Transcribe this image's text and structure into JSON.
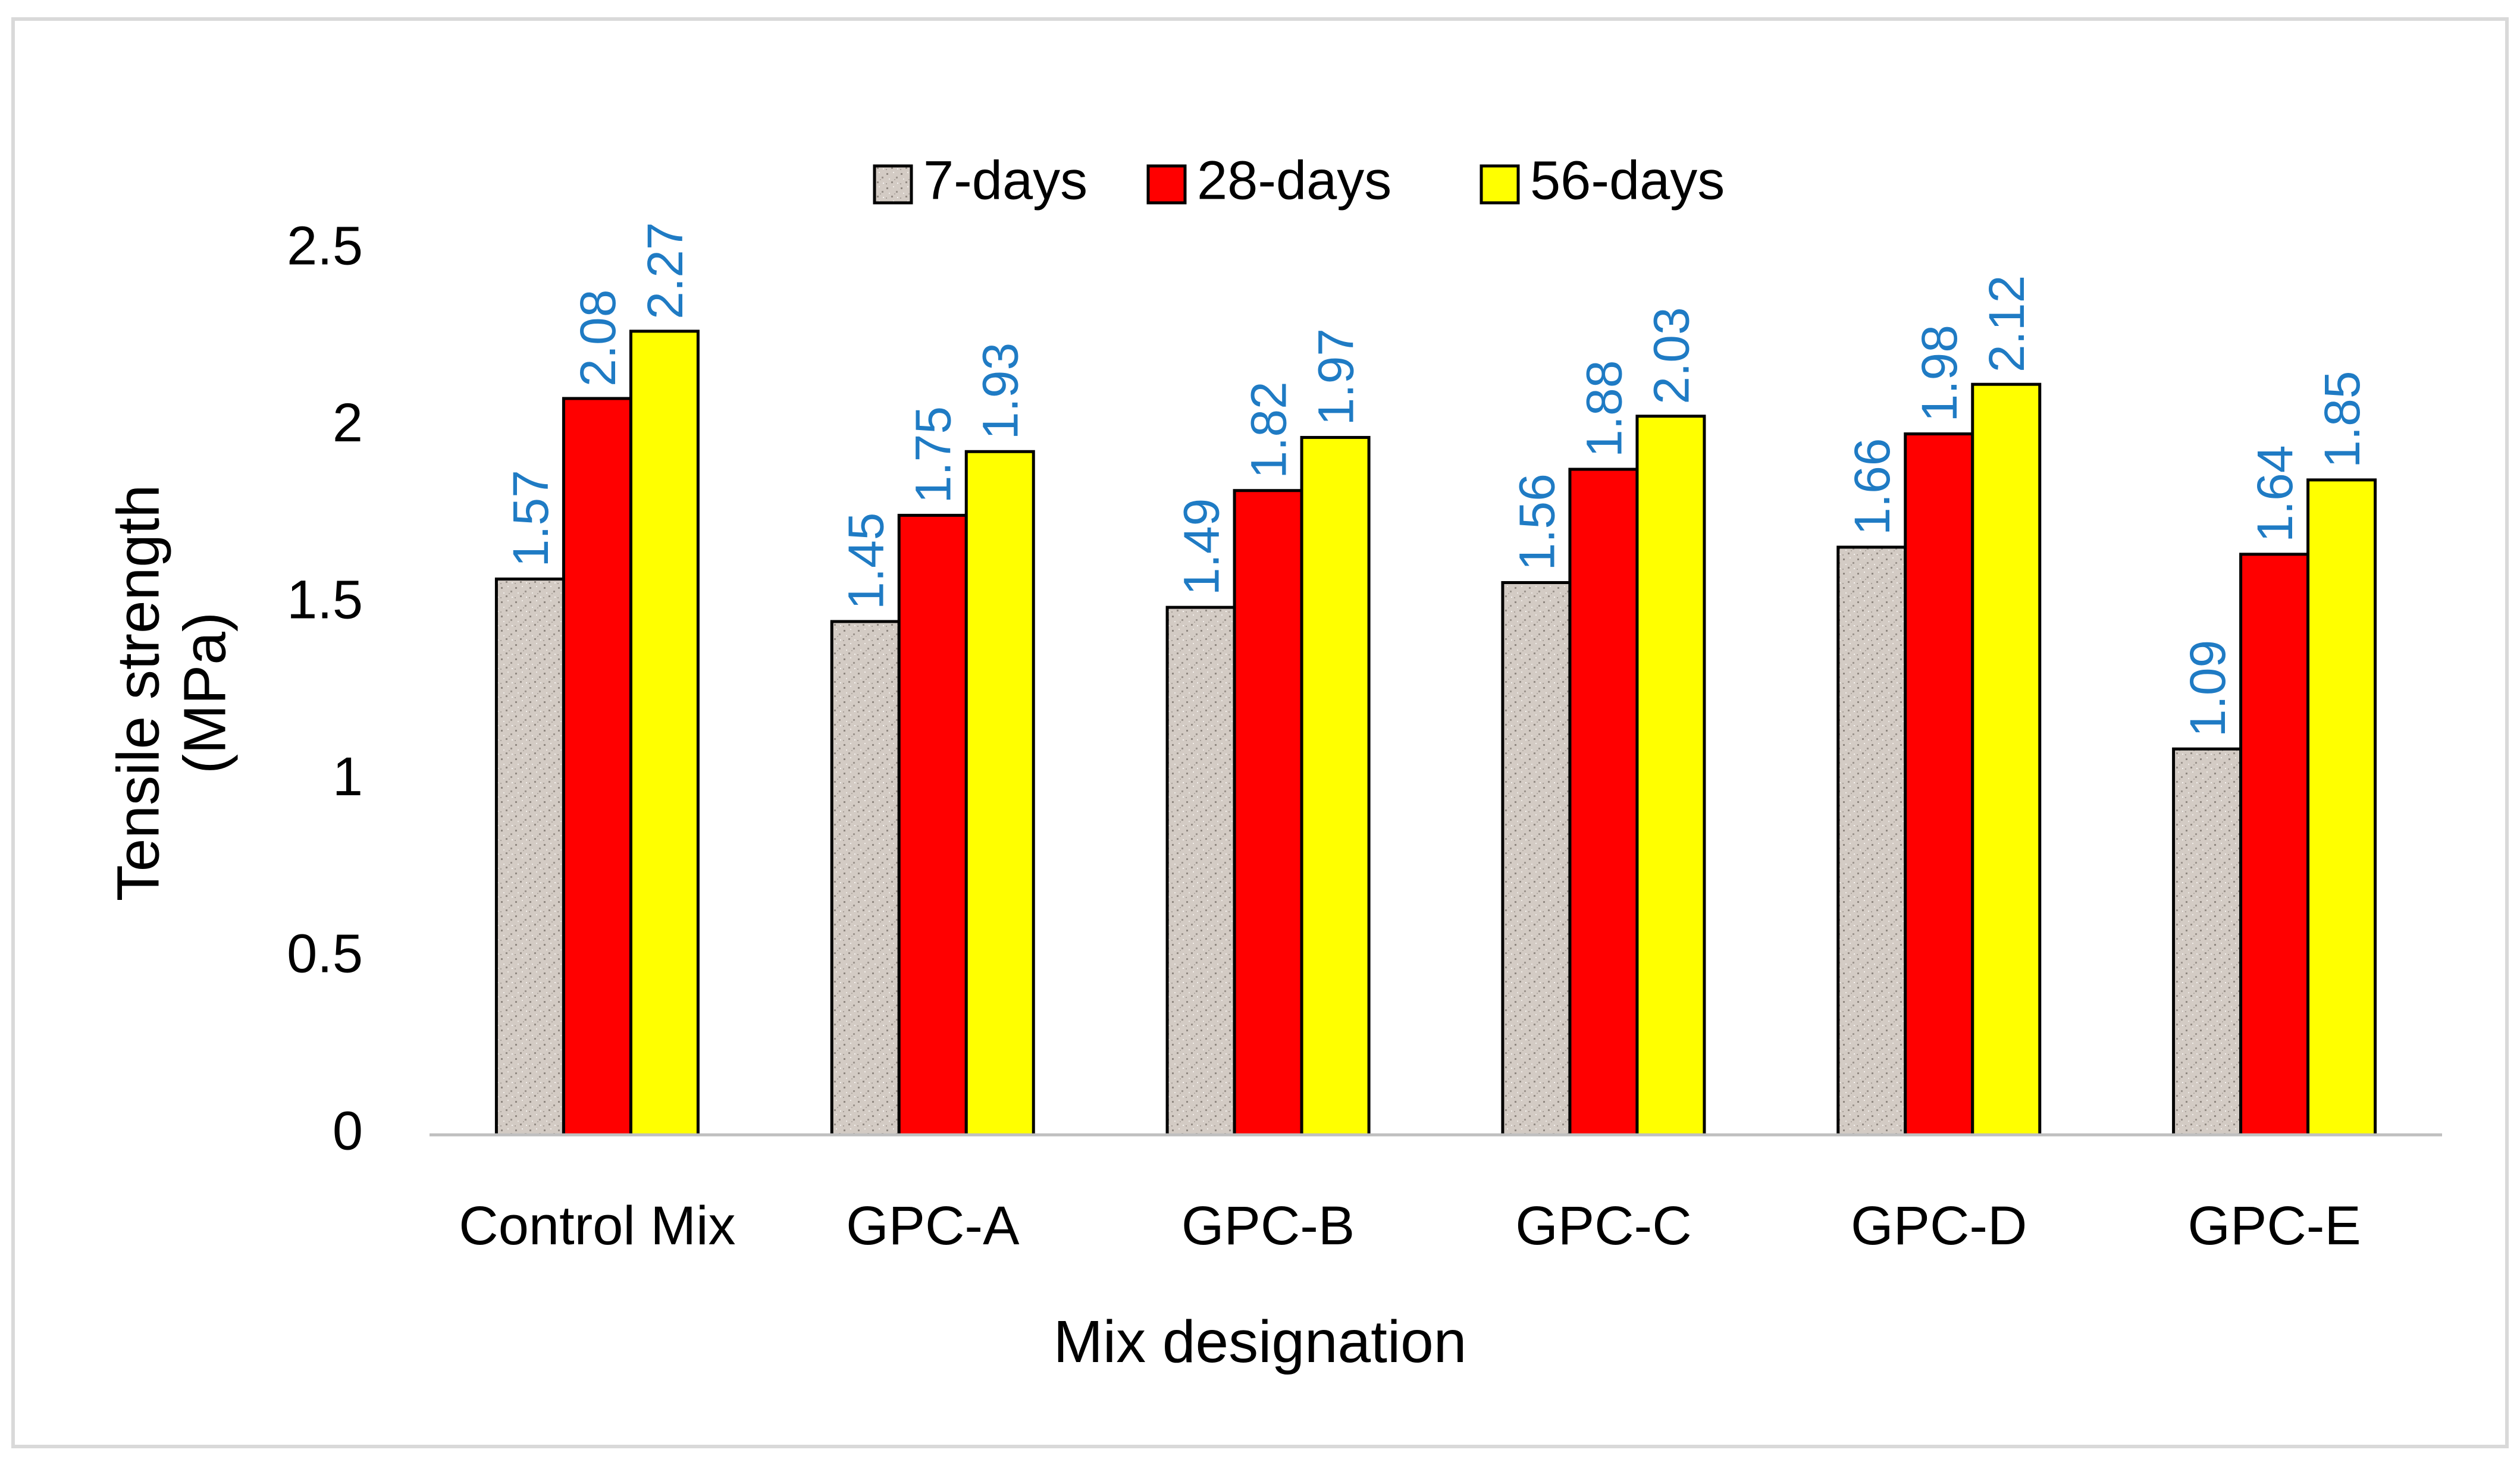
{
  "chart_data": {
    "type": "bar",
    "title": "",
    "xlabel": "Mix designation",
    "ylabel": [
      "Tensile strength",
      "(MPa)"
    ],
    "ylim": [
      0,
      2.5
    ],
    "yticks": [
      0,
      0.5,
      1,
      1.5,
      2,
      2.5
    ],
    "ytick_labels": [
      "0",
      "0.5",
      "1",
      "1.5",
      "2",
      "2.5"
    ],
    "categories": [
      "Control Mix",
      "GPC-A",
      "GPC-B",
      "GPC-C",
      "GPC-D",
      "GPC-E"
    ],
    "legend_position": "top-center",
    "grid": false,
    "series": [
      {
        "name": "7-days",
        "color": "#cfc6bf",
        "pattern": "speckled",
        "values": [
          1.57,
          1.45,
          1.49,
          1.56,
          1.66,
          1.09
        ],
        "labels": [
          "1.57",
          "1.45",
          "1.49",
          "1.56",
          "1.66",
          "1.09"
        ]
      },
      {
        "name": "28-days",
        "color": "#ff0000",
        "values": [
          2.08,
          1.75,
          1.82,
          1.88,
          1.98,
          1.64
        ],
        "labels": [
          "2.08",
          "1.75",
          "1.82",
          "1.88",
          "1.98",
          "1.64"
        ]
      },
      {
        "name": "56-days",
        "color": "#ffff00",
        "values": [
          2.27,
          1.93,
          1.97,
          2.03,
          2.12,
          1.85
        ],
        "labels": [
          "2.27",
          "1.93",
          "1.97",
          "2.03",
          "2.12",
          "1.85"
        ]
      }
    ],
    "data_label_color": "#1f7bc4"
  }
}
